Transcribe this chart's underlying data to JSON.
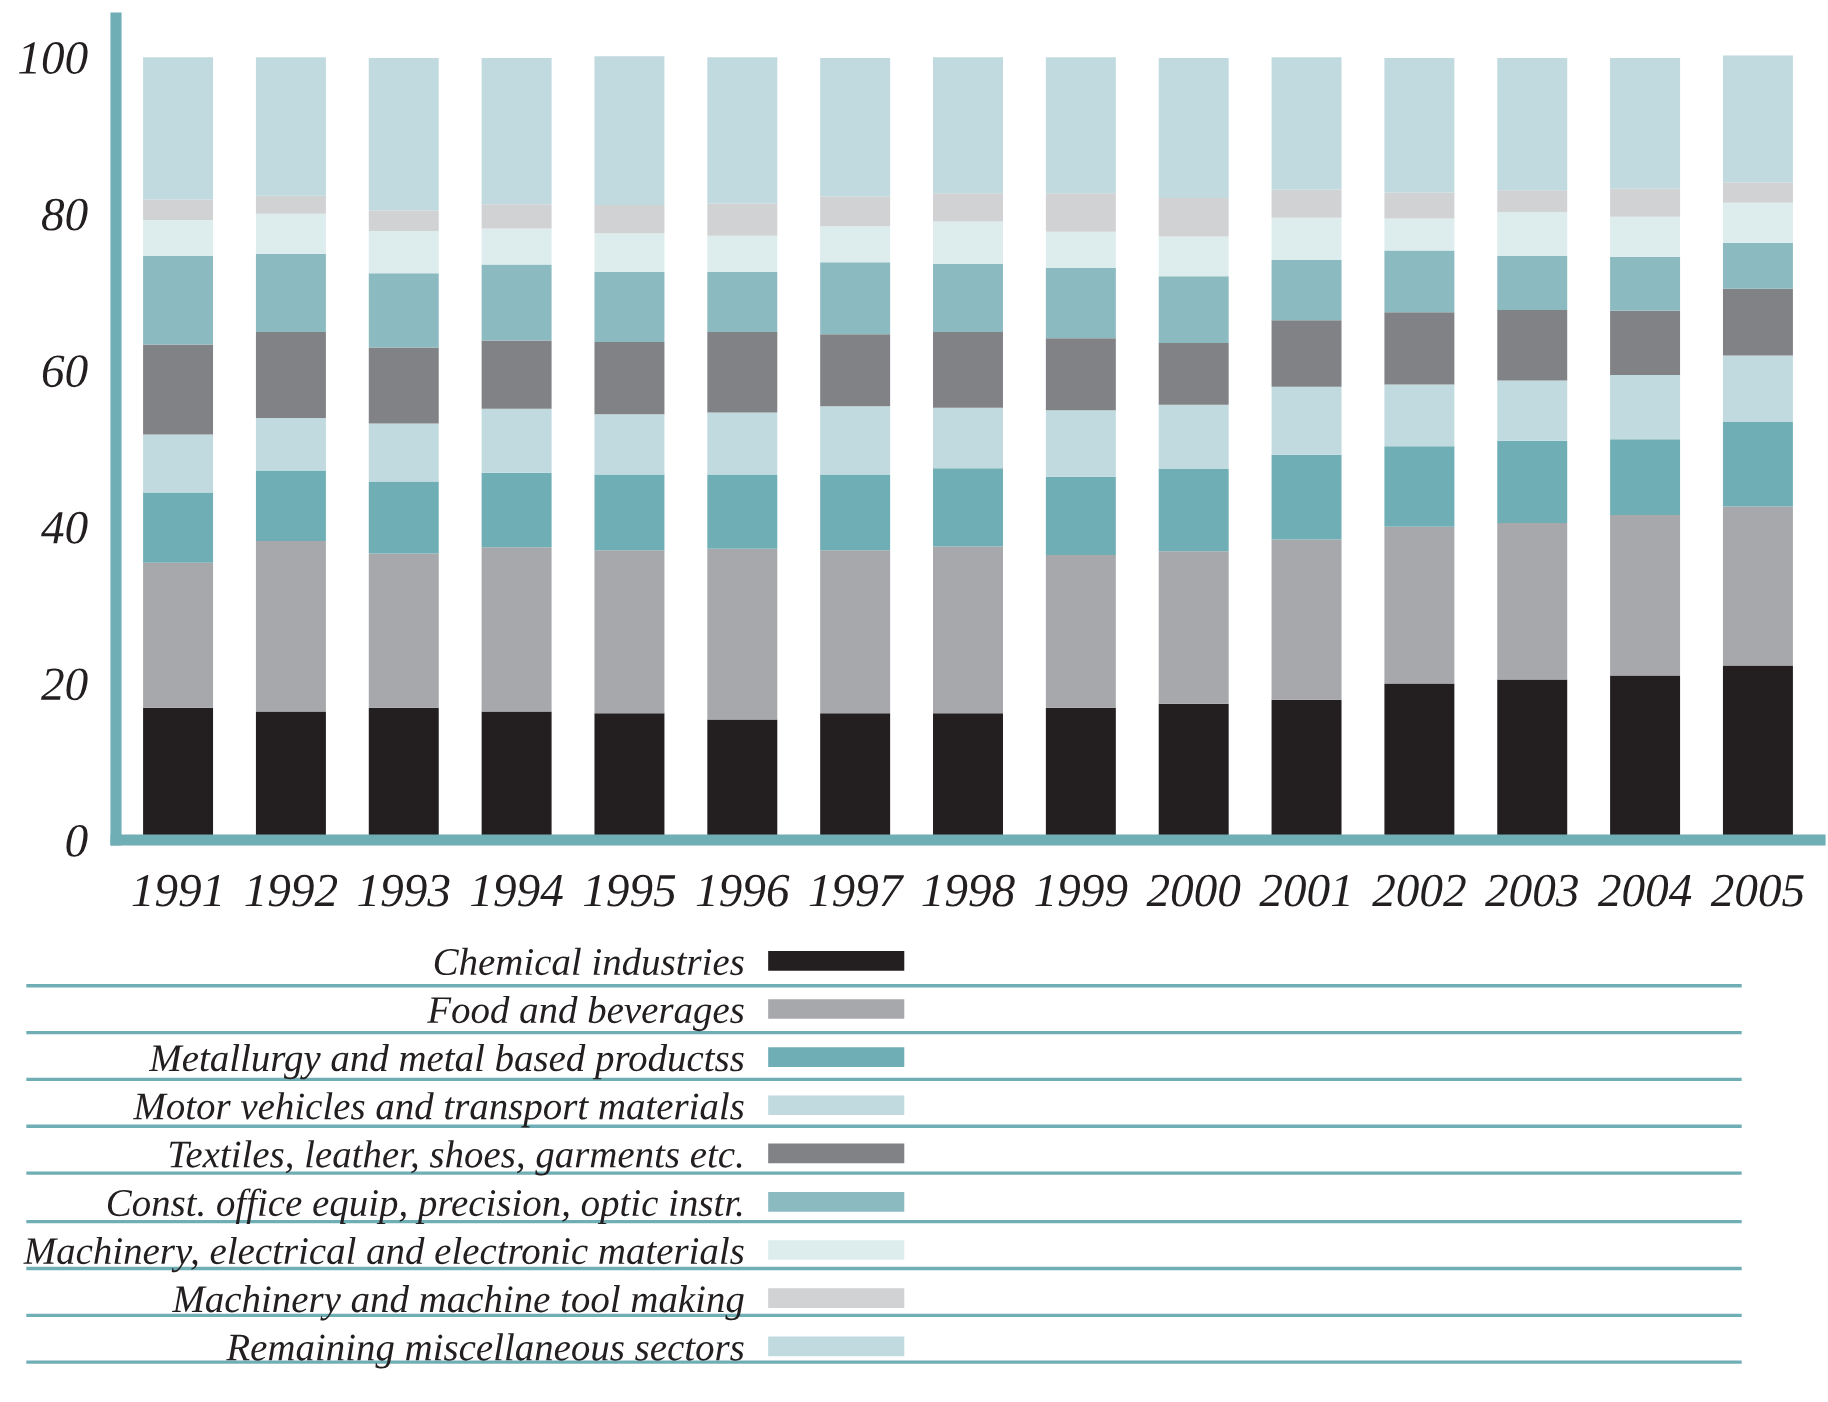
{
  "chart_data": {
    "type": "bar",
    "stacked": true,
    "legend": "bottom",
    "grid": false,
    "categories": [
      "1991",
      "1992",
      "1993",
      "1994",
      "1995",
      "1996",
      "1997",
      "1998",
      "1999",
      "2000",
      "2001",
      "2002",
      "2003",
      "2004",
      "2005"
    ],
    "ylim": [
      0,
      105
    ],
    "yticks": [
      0,
      20,
      40,
      60,
      80,
      100
    ],
    "series": [
      {
        "name": "Chemical industries",
        "color": "#231f20",
        "values": [
          16.9,
          16.4,
          16.9,
          16.4,
          16.2,
          15.4,
          16.2,
          16.2,
          16.9,
          17.4,
          17.9,
          20.0,
          20.5,
          21.0,
          22.3
        ]
      },
      {
        "name": "Food and beverages",
        "color": "#a7a8ab",
        "values": [
          18.5,
          21.8,
          19.7,
          21.0,
          20.8,
          21.8,
          20.8,
          21.3,
          19.5,
          19.5,
          20.5,
          20.0,
          20.0,
          20.5,
          20.3
        ]
      },
      {
        "name": "Metallurgy and metal based productss",
        "color": "#70aeb5",
        "values": [
          9.0,
          9.0,
          9.2,
          9.5,
          9.7,
          9.5,
          9.7,
          10.0,
          10.0,
          10.5,
          10.8,
          10.3,
          10.5,
          9.7,
          10.8
        ]
      },
      {
        "name": "Motor vehicles and transport materials",
        "color": "#c0dadf",
        "values": [
          7.4,
          6.7,
          7.4,
          8.2,
          7.7,
          7.9,
          8.7,
          7.7,
          8.5,
          8.2,
          8.7,
          7.9,
          7.7,
          8.2,
          8.5
        ]
      },
      {
        "name": "Textiles, leather, shoes, garments etc.",
        "color": "#818285",
        "values": [
          11.5,
          11.0,
          9.7,
          8.7,
          9.2,
          10.3,
          9.2,
          9.7,
          9.2,
          7.9,
          8.5,
          9.2,
          9.0,
          8.2,
          8.5
        ]
      },
      {
        "name": "Const. office equip, precision, optic instr.",
        "color": "#8bbbc1",
        "values": [
          11.3,
          10.0,
          9.5,
          9.7,
          9.0,
          7.7,
          9.2,
          8.7,
          9.0,
          8.5,
          7.7,
          7.9,
          6.9,
          6.9,
          5.9
        ]
      },
      {
        "name": "Machinery, electrical and electronic materials",
        "color": "#ddeced",
        "values": [
          4.6,
          5.1,
          5.4,
          4.6,
          4.9,
          4.6,
          4.6,
          5.4,
          4.6,
          5.1,
          5.4,
          4.1,
          5.6,
          5.1,
          5.1
        ]
      },
      {
        "name": "Machinery and machine tool making",
        "color": "#d1d2d4",
        "values": [
          2.6,
          2.3,
          2.6,
          3.1,
          3.6,
          4.1,
          3.8,
          3.6,
          4.9,
          4.9,
          3.6,
          3.3,
          2.8,
          3.6,
          2.6
        ]
      },
      {
        "name": "Remaining miscellaneous sectors",
        "color": "#c0dadf",
        "values": [
          18.2,
          17.7,
          19.5,
          18.7,
          19.0,
          18.7,
          17.7,
          17.4,
          17.4,
          17.9,
          16.9,
          17.2,
          16.9,
          16.7,
          16.2
        ]
      }
    ]
  }
}
